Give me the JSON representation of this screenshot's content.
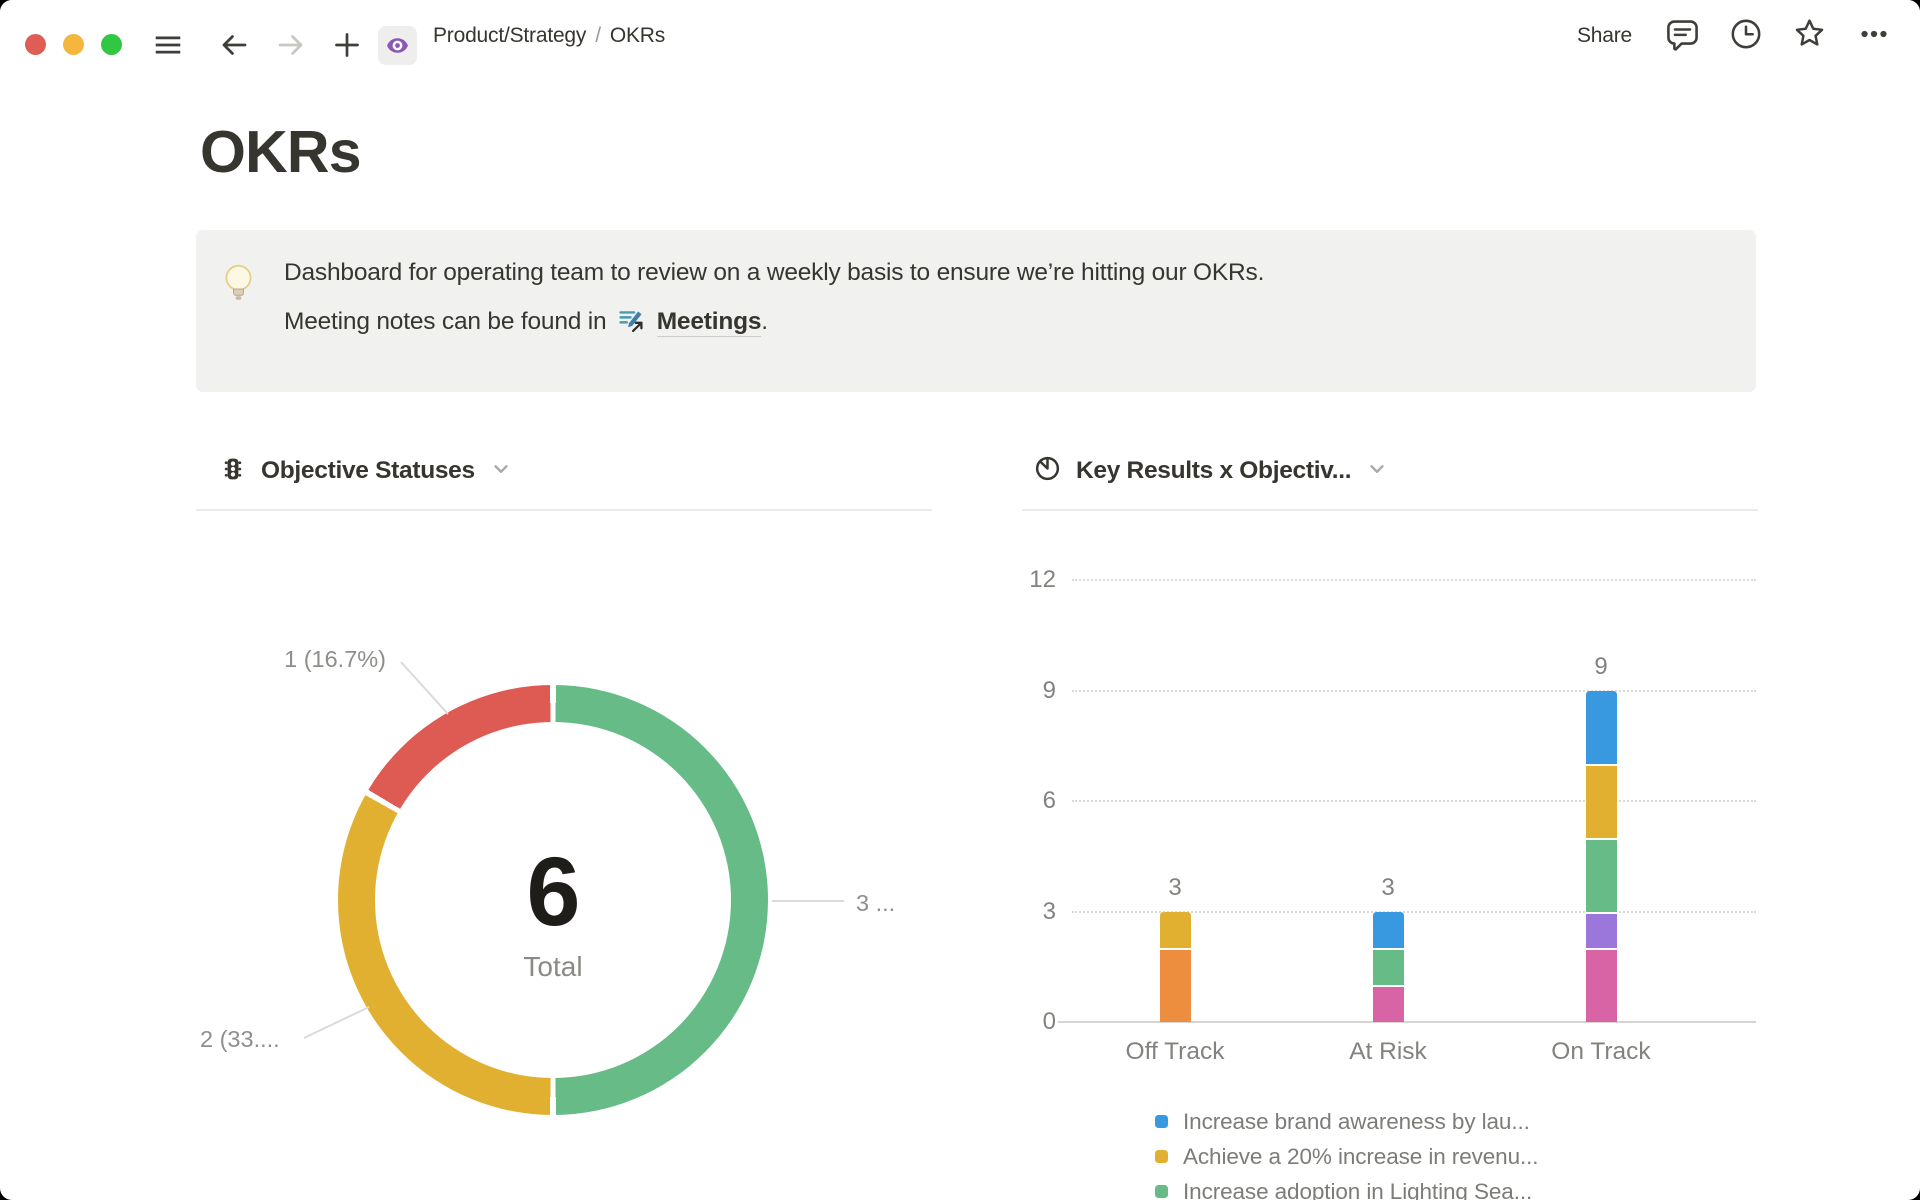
{
  "topbar": {
    "breadcrumb": {
      "parent": "Product/Strategy",
      "separator": "/",
      "current": "OKRs"
    },
    "share_label": "Share"
  },
  "icons": {
    "window": [
      "close-button",
      "minimize-button",
      "maximize-button"
    ],
    "left": [
      "hamburger-icon",
      "back-arrow-icon",
      "forward-arrow-icon",
      "plus-icon",
      "page-eye-icon"
    ],
    "right": [
      "comment-icon",
      "clock-icon",
      "star-icon",
      "more-icon"
    ],
    "callout": "lightbulb-icon",
    "meetings_link": "meetings-page-icon",
    "chart_headers": [
      "traffic-light-icon",
      "pie-chart-icon"
    ]
  },
  "page": {
    "title": "OKRs",
    "callout": {
      "line1": "Dashboard for operating team to review on a weekly basis to ensure we’re hitting our OKRs.",
      "line2_prefix": "Meeting notes can be found in",
      "link_label": "Meetings",
      "line2_suffix": "."
    }
  },
  "palette": {
    "red": "#DE5B53",
    "green": "#66BB87",
    "yellow": "#E2B031",
    "orange": "#EC8E3E",
    "blue": "#3898E0",
    "pink": "#D864A5",
    "purple": "#9B77DC"
  },
  "chart_data": [
    {
      "type": "donut",
      "title": "Objective Statuses",
      "center_value": "6",
      "center_label": "Total",
      "total": 6,
      "segments": [
        {
          "value": 3,
          "color": "green",
          "callout_label": "3 ..."
        },
        {
          "value": 2,
          "color": "yellow",
          "callout_label": "2 (33...."
        },
        {
          "value": 1,
          "color": "red",
          "callout_label": "1 (16.7%)"
        }
      ]
    },
    {
      "type": "stacked-bar",
      "title": "Key Results x Objectiv...",
      "categories": [
        "Off Track",
        "At Risk",
        "On Track"
      ],
      "totals": [
        3,
        3,
        9
      ],
      "y_ticks": [
        0,
        3,
        6,
        9,
        12
      ],
      "ylim": [
        0,
        12
      ],
      "grid": "dotted-horizontal",
      "series_stacks": [
        [
          {
            "color": "orange",
            "value": 2
          },
          {
            "color": "yellow",
            "value": 1
          }
        ],
        [
          {
            "color": "pink",
            "value": 1
          },
          {
            "color": "green",
            "value": 1
          },
          {
            "color": "blue",
            "value": 1
          }
        ],
        [
          {
            "color": "pink",
            "value": 2
          },
          {
            "color": "purple",
            "value": 1
          },
          {
            "color": "green",
            "value": 2
          },
          {
            "color": "yellow",
            "value": 2
          },
          {
            "color": "blue",
            "value": 2
          }
        ]
      ],
      "legend": [
        {
          "color": "blue",
          "label": "Increase brand awareness by lau..."
        },
        {
          "color": "yellow",
          "label": "Achieve a 20% increase in revenu..."
        },
        {
          "color": "green",
          "label": "Increase adoption in Lighting Sea..."
        }
      ],
      "legend_position": "bottom"
    }
  ]
}
